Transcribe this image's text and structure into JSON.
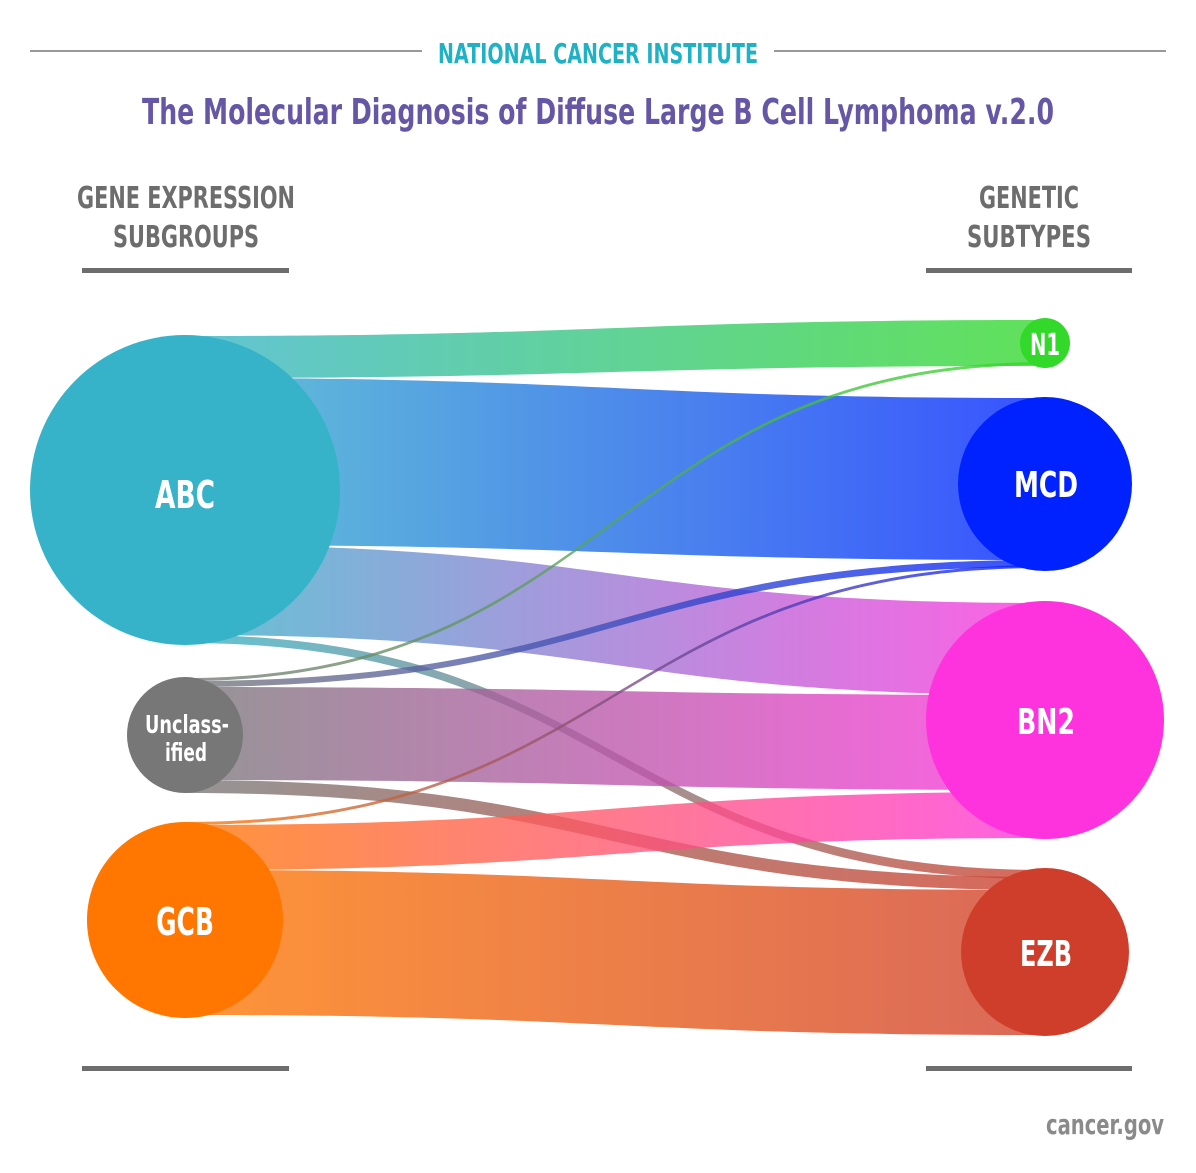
{
  "header": {
    "org": "NATIONAL CANCER INSTITUTE",
    "title": "The Molecular Diagnosis of Diffuse Large B Cell Lymphoma v.2.0"
  },
  "left_heading": {
    "line1": "GENE EXPRESSION",
    "line2": "SUBGROUPS"
  },
  "right_heading": {
    "line1": "GENETIC",
    "line2": "SUBTYPES"
  },
  "footer": {
    "source": "cancer.gov"
  },
  "colors": {
    "org": "#1fb1c4",
    "title": "#6657a6",
    "heading": "#6d6d6d",
    "rule": "#6d6d6d"
  },
  "nodes": {
    "abc": {
      "label": "ABC",
      "color": "#36b3c9"
    },
    "unclassified": {
      "label1": "Unclass-",
      "label2": "ified",
      "color": "#777777"
    },
    "gcb": {
      "label": "GCB",
      "color": "#ff7700"
    },
    "n1": {
      "label": "N1",
      "color": "#33d92a"
    },
    "mcd": {
      "label": "MCD",
      "color": "#0022ff"
    },
    "bn2": {
      "label": "BN2",
      "color": "#ff33dd"
    },
    "ezb": {
      "label": "EZB",
      "color": "#cf3e2a"
    }
  },
  "links": [
    {
      "source": "abc",
      "target": "n1"
    },
    {
      "source": "abc",
      "target": "mcd"
    },
    {
      "source": "abc",
      "target": "bn2"
    },
    {
      "source": "abc",
      "target": "ezb"
    },
    {
      "source": "unclassified",
      "target": "n1"
    },
    {
      "source": "unclassified",
      "target": "mcd"
    },
    {
      "source": "unclassified",
      "target": "bn2"
    },
    {
      "source": "unclassified",
      "target": "ezb"
    },
    {
      "source": "gcb",
      "target": "mcd"
    },
    {
      "source": "gcb",
      "target": "bn2"
    },
    {
      "source": "gcb",
      "target": "ezb"
    }
  ]
}
